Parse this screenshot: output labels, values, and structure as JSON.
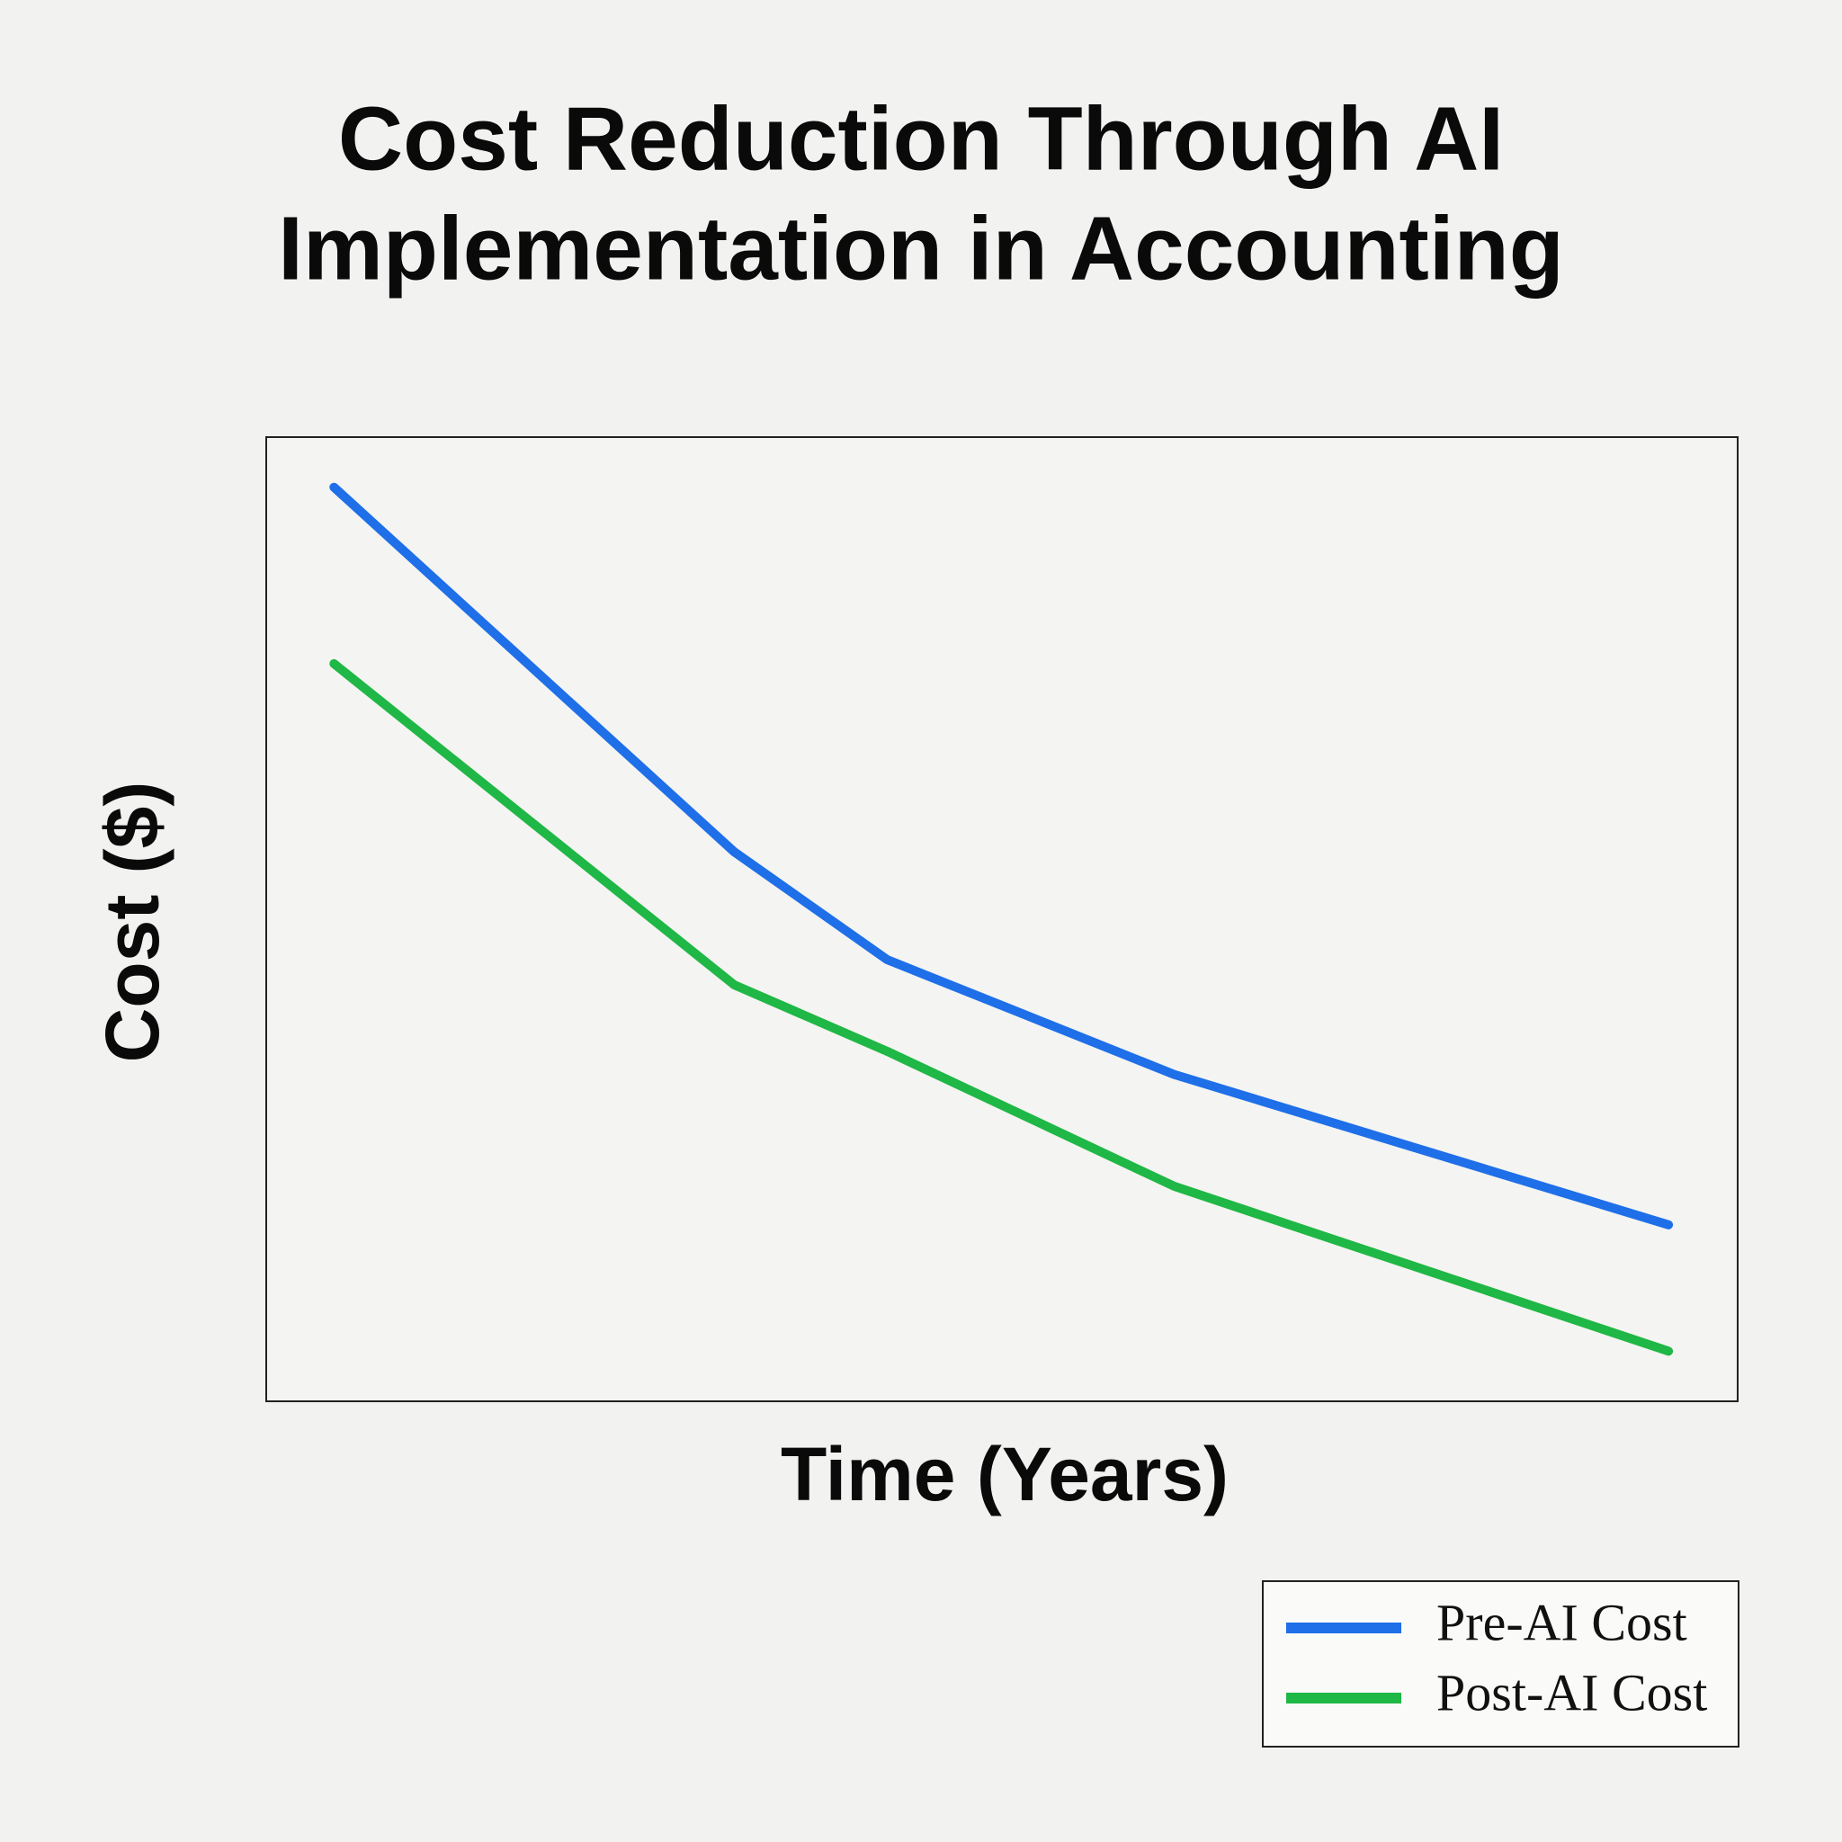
{
  "chart_data": {
    "type": "line",
    "title": [
      "Cost Reduction Through AI",
      "Implementation in Accounting"
    ],
    "x_label": "Time (Years)",
    "y_label": "Cost ($)",
    "x": [
      4.6,
      31.8,
      42.2,
      61.7,
      95.3
    ],
    "xlim": [
      0,
      100
    ],
    "ylim": [
      0,
      100
    ],
    "series": [
      {
        "name": "Pre-AI Cost",
        "color": "#1e6fe8",
        "values": [
          94.8,
          57.0,
          45.8,
          33.9,
          18.3
        ]
      },
      {
        "name": "Post-AI Cost",
        "color": "#1fb745",
        "values": [
          76.5,
          43.2,
          36.3,
          22.3,
          5.2
        ]
      }
    ],
    "grid": false,
    "legend": "bottom-right"
  }
}
